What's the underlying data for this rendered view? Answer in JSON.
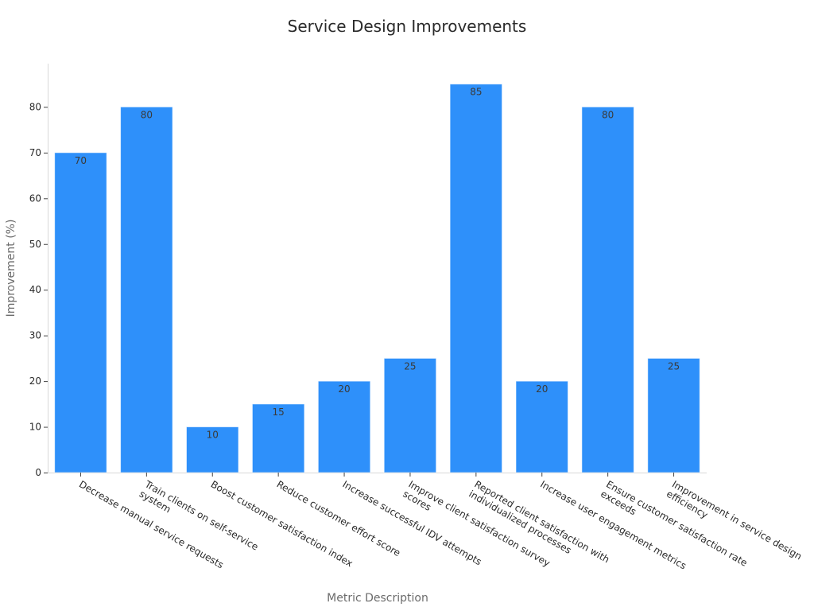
{
  "chart_data": {
    "type": "bar",
    "title": "Service Design Improvements",
    "xlabel": "Metric Description",
    "ylabel": "Improvement (%)",
    "ylim": [
      0,
      90
    ],
    "yticks": [
      0,
      10,
      20,
      30,
      40,
      50,
      60,
      70,
      80
    ],
    "grid": false,
    "bar_color": "#2e90fa",
    "categories": [
      [
        "Decrease manual service requests"
      ],
      [
        "Train clients on self-service",
        "system"
      ],
      [
        "Boost customer satisfaction index"
      ],
      [
        "Reduce customer effort score"
      ],
      [
        "Increase successful IDV attempts"
      ],
      [
        "Improve client satisfaction survey",
        "scores"
      ],
      [
        "Reported client satisfaction with",
        "individualized processes"
      ],
      [
        "Increase user engagement metrics"
      ],
      [
        "Ensure customer satisfaction rate",
        "exceeds"
      ],
      [
        "Improvement in service design",
        "efficiency"
      ]
    ],
    "values": [
      70,
      80,
      10,
      15,
      20,
      25,
      85,
      20,
      80,
      25
    ]
  }
}
